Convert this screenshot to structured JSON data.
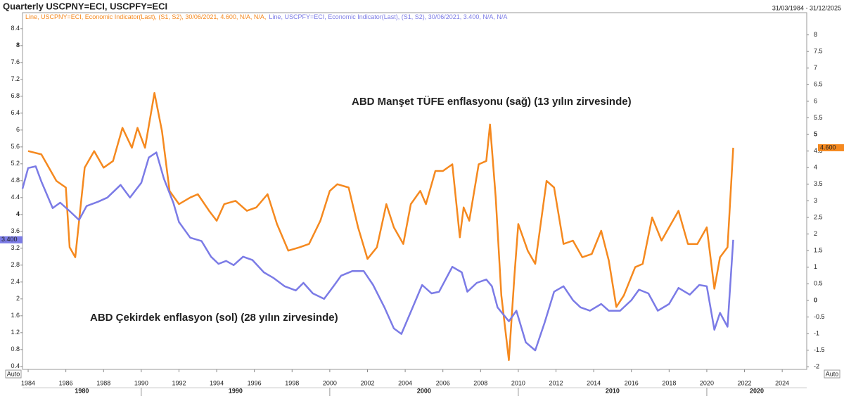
{
  "chart_data": {
    "type": "line",
    "title": "Quarterly USCPNY=ECI, USCPFY=ECI",
    "date_range": "31/03/1984 - 31/12/2025",
    "auto_label": "Auto",
    "annotations": [
      {
        "text": "ABD Manşet TÜFE enflasyonu (sağ) (13 yılın zirvesinde)",
        "series": 0
      },
      {
        "text": "ABD Çekirdek enflasyon (sol) (28 yılın zirvesinde)",
        "series": 1
      }
    ],
    "xlim": [
      1983.7,
      2025.3
    ],
    "xticks": [
      1984,
      1986,
      1988,
      1990,
      1992,
      1994,
      1996,
      1998,
      2000,
      2002,
      2004,
      2006,
      2008,
      2010,
      2012,
      2014,
      2016,
      2018,
      2020,
      2022,
      2024
    ],
    "decades": [
      1980,
      1990,
      2000,
      2010,
      2020
    ],
    "ylim": [
      0.33,
      8.78
    ],
    "yticks": [
      0.4,
      0.8,
      1.2,
      1.6,
      2,
      2.4,
      2.8,
      3.2,
      3.6,
      4,
      4.4,
      4.8,
      5.2,
      5.6,
      6,
      6.4,
      6.8,
      7.2,
      7.6,
      8,
      8.4
    ],
    "y2lim": [
      -2.08,
      8.67
    ],
    "y2ticks": [
      -2,
      -1.5,
      -1,
      -0.5,
      0,
      0.5,
      1,
      1.5,
      2,
      2.5,
      3,
      3.5,
      4,
      4.5,
      5,
      5.5,
      6,
      6.5,
      7,
      7.5,
      8
    ],
    "series": [
      {
        "name": "Line, USCPNY=ECI, Economic Indicator(Last), (S1, S2), 30/06/2021, 4.600, N/A, N/A,",
        "color": "#f5891f",
        "axis": "y2",
        "last_label": "4.600",
        "x": [
          1984.0,
          1984.7,
          1985.5,
          1986.0,
          1986.2,
          1986.5,
          1987.0,
          1987.5,
          1988.0,
          1988.5,
          1989.0,
          1989.5,
          1989.8,
          1990.2,
          1990.7,
          1991.1,
          1991.5,
          1992.0,
          1992.6,
          1993.0,
          1993.6,
          1994.0,
          1994.4,
          1995.0,
          1995.6,
          1996.1,
          1996.7,
          1997.2,
          1997.8,
          1998.4,
          1998.9,
          1999.5,
          2000.0,
          2000.4,
          2001.0,
          2001.5,
          2002.0,
          2002.5,
          2003.0,
          2003.4,
          2003.9,
          2004.3,
          2004.8,
          2005.1,
          2005.6,
          2006.0,
          2006.5,
          2006.9,
          2007.1,
          2007.4,
          2007.9,
          2008.3,
          2008.5,
          2008.8,
          2009.1,
          2009.5,
          2009.8,
          2010.0,
          2010.5,
          2010.9,
          2011.5,
          2011.9,
          2012.4,
          2012.9,
          2013.4,
          2013.9,
          2014.4,
          2014.8,
          2015.2,
          2015.6,
          2016.2,
          2016.6,
          2017.1,
          2017.6,
          2018.0,
          2018.5,
          2019.0,
          2019.5,
          2020.0,
          2020.4,
          2020.7,
          2021.1,
          2021.4
        ],
        "values": [
          4.5,
          4.4,
          3.6,
          3.4,
          1.6,
          1.3,
          4.0,
          4.5,
          4.0,
          4.2,
          5.2,
          4.6,
          5.2,
          4.6,
          6.25,
          5.1,
          3.3,
          2.9,
          3.1,
          3.2,
          2.7,
          2.4,
          2.9,
          3.0,
          2.7,
          2.8,
          3.2,
          2.3,
          1.5,
          1.6,
          1.7,
          2.4,
          3.3,
          3.5,
          3.4,
          2.2,
          1.25,
          1.6,
          2.9,
          2.2,
          1.7,
          2.9,
          3.3,
          2.9,
          3.9,
          3.9,
          4.1,
          1.9,
          2.8,
          2.4,
          4.1,
          4.2,
          5.3,
          3.1,
          0.15,
          -1.8,
          0.8,
          2.3,
          1.5,
          1.1,
          3.6,
          3.4,
          1.7,
          1.8,
          1.3,
          1.4,
          2.1,
          1.2,
          -0.2,
          0.15,
          1.0,
          1.1,
          2.5,
          1.8,
          2.2,
          2.7,
          1.7,
          1.7,
          2.2,
          0.35,
          1.3,
          1.6,
          4.6
        ]
      },
      {
        "name": "Line, USCPFY=ECI, Economic Indicator(Last), (S1, S2), 30/06/2021, 3.400, N/A, N/A",
        "color": "#7b7be6",
        "axis": "y",
        "last_label": "3.400",
        "x": [
          1983.7,
          1984.0,
          1984.4,
          1984.7,
          1985.3,
          1985.7,
          1986.2,
          1986.7,
          1987.1,
          1987.7,
          1988.2,
          1988.9,
          1989.4,
          1990.0,
          1990.4,
          1990.8,
          1991.2,
          1991.7,
          1992.0,
          1992.6,
          1993.2,
          1993.7,
          1994.1,
          1994.5,
          1994.9,
          1995.4,
          1995.9,
          1996.5,
          1997.0,
          1997.6,
          1998.2,
          1998.6,
          1999.1,
          1999.7,
          2000.2,
          2000.6,
          2001.2,
          2001.8,
          2002.3,
          2002.9,
          2003.4,
          2003.8,
          2004.4,
          2004.9,
          2005.4,
          2005.8,
          2006.5,
          2007.0,
          2007.3,
          2007.8,
          2008.3,
          2008.6,
          2008.9,
          2009.5,
          2009.9,
          2010.4,
          2010.9,
          2011.4,
          2011.9,
          2012.4,
          2012.9,
          2013.3,
          2013.8,
          2014.4,
          2014.8,
          2015.4,
          2016.0,
          2016.4,
          2016.9,
          2017.4,
          2018.0,
          2018.5,
          2019.1,
          2019.6,
          2020.0,
          2020.4,
          2020.7,
          2021.1,
          2021.4
        ],
        "values": [
          4.61,
          5.1,
          5.14,
          4.78,
          4.15,
          4.28,
          4.08,
          3.87,
          4.2,
          4.3,
          4.4,
          4.7,
          4.4,
          4.75,
          5.35,
          5.47,
          4.85,
          4.28,
          3.82,
          3.45,
          3.37,
          3.0,
          2.83,
          2.9,
          2.8,
          3.0,
          2.92,
          2.63,
          2.5,
          2.3,
          2.2,
          2.38,
          2.13,
          2.0,
          2.3,
          2.55,
          2.66,
          2.66,
          2.33,
          1.8,
          1.3,
          1.17,
          1.8,
          2.33,
          2.13,
          2.17,
          2.76,
          2.63,
          2.17,
          2.38,
          2.46,
          2.3,
          1.8,
          1.47,
          1.72,
          0.97,
          0.78,
          1.44,
          2.17,
          2.3,
          1.97,
          1.8,
          1.72,
          1.88,
          1.72,
          1.72,
          1.97,
          2.22,
          2.13,
          1.72,
          1.88,
          2.26,
          2.1,
          2.33,
          2.3,
          1.27,
          1.67,
          1.34,
          3.4
        ]
      }
    ]
  }
}
